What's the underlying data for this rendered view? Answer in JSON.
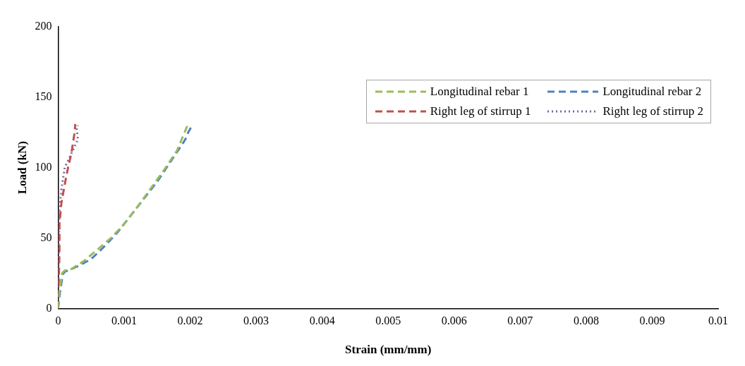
{
  "chart_data": {
    "type": "line",
    "xlabel": "Strain (mm/mm)",
    "ylabel": "Load (kN)",
    "xlim": [
      0,
      0.01
    ],
    "xticks": [
      0,
      0.001,
      0.002,
      0.003,
      0.004,
      0.005,
      0.006,
      0.007,
      0.008,
      0.009,
      0.01
    ],
    "ylim": [
      0,
      200
    ],
    "yticks": [
      0,
      50,
      100,
      150,
      200
    ],
    "grid": false,
    "legend": "top right",
    "marker": "none",
    "series": [
      {
        "name": "Longitudinal rebar 1",
        "color": "#9bbb59",
        "line_style": "dashed",
        "x": [
          0,
          2e-05,
          6e-05,
          0.0001,
          0.0002,
          0.0004,
          0.0006,
          0.0008,
          0.001,
          0.0012,
          0.0014,
          0.0016,
          0.0018,
          0.00196
        ],
        "values": [
          0,
          12,
          25,
          27,
          28,
          34,
          42,
          50,
          60,
          72,
          85,
          98,
          112,
          130
        ]
      },
      {
        "name": "Longitudinal rebar 2",
        "color": "#4f81bd",
        "line_style": "dashed",
        "x": [
          0,
          3e-05,
          7e-05,
          0.0001,
          0.0002,
          0.0003,
          0.0005,
          0.0007,
          0.0009,
          0.0011,
          0.0013,
          0.0015,
          0.0017,
          0.0019,
          0.00195,
          0.00197,
          0.00203
        ],
        "values": [
          0,
          12,
          24,
          26,
          28,
          30,
          35,
          44,
          54,
          66,
          78,
          90,
          104,
          118,
          122,
          125,
          130
        ]
      },
      {
        "name": "Right leg of stirrup 1",
        "color": "#c0504d",
        "line_style": "dashed",
        "x": [
          0,
          1e-05,
          2e-05,
          2e-05,
          5e-05,
          0.0001,
          0.00015,
          0.0002,
          0.00025,
          0.00026
        ],
        "values": [
          0,
          20,
          40,
          60,
          75,
          88,
          100,
          110,
          125,
          131
        ]
      },
      {
        "name": "Right leg of stirrup 2",
        "color": "#8064a2",
        "line_style": "dotted",
        "x": [
          0,
          1e-05,
          2e-05,
          5e-05,
          0.0001,
          0.0002,
          0.00025,
          0.0003,
          0.00028,
          0.0003
        ],
        "values": [
          0,
          40,
          70,
          85,
          100,
          110,
          115,
          120,
          128,
          130
        ]
      }
    ]
  }
}
